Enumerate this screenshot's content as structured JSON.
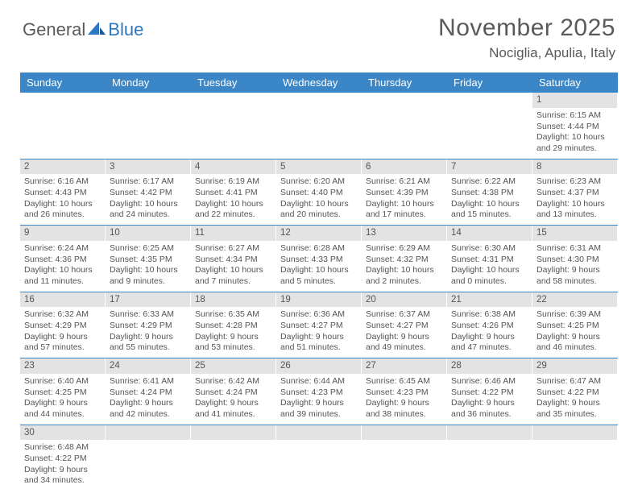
{
  "logo": {
    "text1": "General",
    "text2": "Blue"
  },
  "title": "November 2025",
  "location": "Nociglia, Apulia, Italy",
  "colors": {
    "header_bg": "#3b86c7",
    "header_text": "#ffffff",
    "daynum_bg": "#e3e3e3",
    "text": "#555555",
    "rule": "#3b86c7"
  },
  "day_names": [
    "Sunday",
    "Monday",
    "Tuesday",
    "Wednesday",
    "Thursday",
    "Friday",
    "Saturday"
  ],
  "weeks": [
    [
      null,
      null,
      null,
      null,
      null,
      null,
      {
        "n": "1",
        "sunrise": "6:15 AM",
        "sunset": "4:44 PM",
        "daylight": "10 hours and 29 minutes."
      }
    ],
    [
      {
        "n": "2",
        "sunrise": "6:16 AM",
        "sunset": "4:43 PM",
        "daylight": "10 hours and 26 minutes."
      },
      {
        "n": "3",
        "sunrise": "6:17 AM",
        "sunset": "4:42 PM",
        "daylight": "10 hours and 24 minutes."
      },
      {
        "n": "4",
        "sunrise": "6:19 AM",
        "sunset": "4:41 PM",
        "daylight": "10 hours and 22 minutes."
      },
      {
        "n": "5",
        "sunrise": "6:20 AM",
        "sunset": "4:40 PM",
        "daylight": "10 hours and 20 minutes."
      },
      {
        "n": "6",
        "sunrise": "6:21 AM",
        "sunset": "4:39 PM",
        "daylight": "10 hours and 17 minutes."
      },
      {
        "n": "7",
        "sunrise": "6:22 AM",
        "sunset": "4:38 PM",
        "daylight": "10 hours and 15 minutes."
      },
      {
        "n": "8",
        "sunrise": "6:23 AM",
        "sunset": "4:37 PM",
        "daylight": "10 hours and 13 minutes."
      }
    ],
    [
      {
        "n": "9",
        "sunrise": "6:24 AM",
        "sunset": "4:36 PM",
        "daylight": "10 hours and 11 minutes."
      },
      {
        "n": "10",
        "sunrise": "6:25 AM",
        "sunset": "4:35 PM",
        "daylight": "10 hours and 9 minutes."
      },
      {
        "n": "11",
        "sunrise": "6:27 AM",
        "sunset": "4:34 PM",
        "daylight": "10 hours and 7 minutes."
      },
      {
        "n": "12",
        "sunrise": "6:28 AM",
        "sunset": "4:33 PM",
        "daylight": "10 hours and 5 minutes."
      },
      {
        "n": "13",
        "sunrise": "6:29 AM",
        "sunset": "4:32 PM",
        "daylight": "10 hours and 2 minutes."
      },
      {
        "n": "14",
        "sunrise": "6:30 AM",
        "sunset": "4:31 PM",
        "daylight": "10 hours and 0 minutes."
      },
      {
        "n": "15",
        "sunrise": "6:31 AM",
        "sunset": "4:30 PM",
        "daylight": "9 hours and 58 minutes."
      }
    ],
    [
      {
        "n": "16",
        "sunrise": "6:32 AM",
        "sunset": "4:29 PM",
        "daylight": "9 hours and 57 minutes."
      },
      {
        "n": "17",
        "sunrise": "6:33 AM",
        "sunset": "4:29 PM",
        "daylight": "9 hours and 55 minutes."
      },
      {
        "n": "18",
        "sunrise": "6:35 AM",
        "sunset": "4:28 PM",
        "daylight": "9 hours and 53 minutes."
      },
      {
        "n": "19",
        "sunrise": "6:36 AM",
        "sunset": "4:27 PM",
        "daylight": "9 hours and 51 minutes."
      },
      {
        "n": "20",
        "sunrise": "6:37 AM",
        "sunset": "4:27 PM",
        "daylight": "9 hours and 49 minutes."
      },
      {
        "n": "21",
        "sunrise": "6:38 AM",
        "sunset": "4:26 PM",
        "daylight": "9 hours and 47 minutes."
      },
      {
        "n": "22",
        "sunrise": "6:39 AM",
        "sunset": "4:25 PM",
        "daylight": "9 hours and 46 minutes."
      }
    ],
    [
      {
        "n": "23",
        "sunrise": "6:40 AM",
        "sunset": "4:25 PM",
        "daylight": "9 hours and 44 minutes."
      },
      {
        "n": "24",
        "sunrise": "6:41 AM",
        "sunset": "4:24 PM",
        "daylight": "9 hours and 42 minutes."
      },
      {
        "n": "25",
        "sunrise": "6:42 AM",
        "sunset": "4:24 PM",
        "daylight": "9 hours and 41 minutes."
      },
      {
        "n": "26",
        "sunrise": "6:44 AM",
        "sunset": "4:23 PM",
        "daylight": "9 hours and 39 minutes."
      },
      {
        "n": "27",
        "sunrise": "6:45 AM",
        "sunset": "4:23 PM",
        "daylight": "9 hours and 38 minutes."
      },
      {
        "n": "28",
        "sunrise": "6:46 AM",
        "sunset": "4:22 PM",
        "daylight": "9 hours and 36 minutes."
      },
      {
        "n": "29",
        "sunrise": "6:47 AM",
        "sunset": "4:22 PM",
        "daylight": "9 hours and 35 minutes."
      }
    ],
    [
      {
        "n": "30",
        "sunrise": "6:48 AM",
        "sunset": "4:22 PM",
        "daylight": "9 hours and 34 minutes."
      },
      null,
      null,
      null,
      null,
      null,
      null
    ]
  ],
  "labels": {
    "sunrise": "Sunrise:",
    "sunset": "Sunset:",
    "daylight": "Daylight:"
  }
}
